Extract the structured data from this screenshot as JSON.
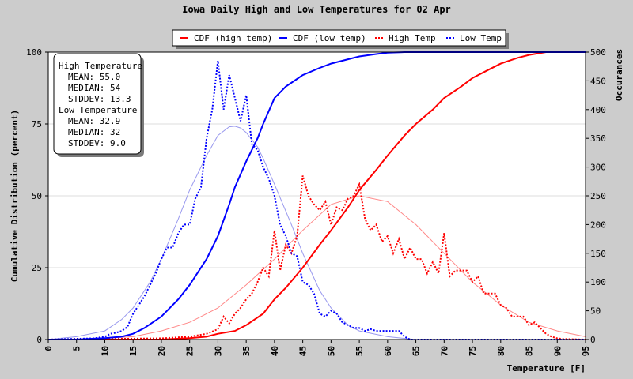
{
  "chart_data": {
    "type": "line",
    "title": "Iowa Daily High and Low Temperatures for 02 Apr",
    "xlabel": "Temperature [F]",
    "ylabel_left": "Cumulative Distribution (percent)",
    "ylabel_right": "Occurances",
    "xlim": [
      0,
      95
    ],
    "x_ticks": [
      0,
      5,
      10,
      15,
      20,
      25,
      30,
      35,
      40,
      45,
      50,
      55,
      60,
      65,
      70,
      75,
      80,
      85,
      90,
      95
    ],
    "ylim_left": [
      0,
      100
    ],
    "y_left_ticks": [
      0,
      25,
      50,
      75,
      100
    ],
    "ylim_right": [
      0,
      500
    ],
    "y_right_ticks": [
      0,
      50,
      100,
      150,
      200,
      250,
      300,
      350,
      400,
      450,
      500
    ],
    "legend": {
      "placement": "top",
      "items": [
        {
          "label": "CDF (high temp)",
          "color": "#ff0000",
          "style": "solid"
        },
        {
          "label": "CDF (low temp)",
          "color": "#0000ff",
          "style": "solid"
        },
        {
          "label": "High Temp",
          "color": "#ff0000",
          "style": "dotted"
        },
        {
          "label": "Low Temp",
          "color": "#0000ff",
          "style": "dotted"
        }
      ]
    },
    "stats_box": {
      "high_heading": "High Temperature",
      "high_mean": "MEAN: 55.0",
      "high_median": "MEDIAN: 54",
      "high_stddev": "STDDEV: 13.3",
      "low_heading": "Low Temperature",
      "low_mean": "MEAN: 32.9",
      "low_median": "MEDIAN: 32",
      "low_stddev": "STDDEV: 9.0"
    },
    "series": [
      {
        "name": "CDF (high temp)",
        "axis": "left",
        "color": "#ff0000",
        "style": "solid",
        "x": [
          0,
          10,
          20,
          25,
          28,
          30,
          33,
          35,
          38,
          40,
          42,
          45,
          48,
          50,
          53,
          55,
          58,
          60,
          63,
          65,
          68,
          70,
          73,
          75,
          78,
          80,
          83,
          85,
          88,
          90,
          95
        ],
        "y": [
          0,
          0,
          0,
          0.5,
          1,
          2,
          3,
          5,
          9,
          14,
          18,
          25,
          33,
          38,
          46,
          52,
          59,
          64,
          71,
          75,
          80,
          84,
          88,
          91,
          94,
          96,
          98,
          99,
          100,
          100,
          100
        ]
      },
      {
        "name": "CDF (low temp)",
        "axis": "left",
        "color": "#0000ff",
        "style": "solid",
        "x": [
          0,
          5,
          10,
          13,
          15,
          17,
          20,
          23,
          25,
          28,
          30,
          32,
          33,
          35,
          37,
          38,
          40,
          42,
          45,
          48,
          50,
          53,
          55,
          58,
          60,
          63,
          65,
          70,
          95
        ],
        "y": [
          0,
          0,
          0.5,
          1,
          2,
          4,
          8,
          14,
          19,
          28,
          36,
          47,
          53,
          62,
          70,
          75,
          84,
          88,
          92,
          94.5,
          96,
          97.5,
          98.5,
          99.3,
          99.8,
          100,
          100,
          100,
          100
        ]
      },
      {
        "name": "High Temp",
        "axis": "right",
        "color": "#ff0000",
        "style": "dotted",
        "x": [
          0,
          20,
          25,
          28,
          30,
          31,
          32,
          33,
          34,
          35,
          36,
          37,
          38,
          39,
          40,
          41,
          42,
          43,
          44,
          45,
          46,
          47,
          48,
          49,
          50,
          51,
          52,
          53,
          54,
          55,
          56,
          57,
          58,
          59,
          60,
          61,
          62,
          63,
          64,
          65,
          66,
          67,
          68,
          69,
          70,
          71,
          72,
          73,
          74,
          75,
          76,
          77,
          78,
          79,
          80,
          81,
          82,
          83,
          84,
          85,
          86,
          87,
          88,
          89,
          90,
          91,
          95
        ],
        "y": [
          0,
          2,
          5,
          10,
          18,
          40,
          28,
          45,
          55,
          70,
          80,
          100,
          125,
          110,
          190,
          120,
          165,
          150,
          180,
          285,
          250,
          235,
          225,
          240,
          200,
          230,
          225,
          245,
          250,
          270,
          210,
          190,
          200,
          170,
          180,
          150,
          175,
          140,
          160,
          140,
          140,
          115,
          135,
          115,
          185,
          110,
          120,
          120,
          120,
          100,
          110,
          80,
          80,
          80,
          60,
          55,
          40,
          40,
          40,
          25,
          30,
          20,
          10,
          5,
          2,
          1,
          0
        ]
      },
      {
        "name": "Low Temp",
        "axis": "right",
        "color": "#0000ff",
        "style": "dotted",
        "x": [
          0,
          8,
          10,
          11,
          12,
          13,
          14,
          15,
          16,
          17,
          18,
          19,
          20,
          21,
          22,
          23,
          24,
          25,
          26,
          27,
          28,
          29,
          30,
          31,
          32,
          33,
          34,
          35,
          36,
          37,
          38,
          39,
          40,
          41,
          42,
          43,
          44,
          45,
          46,
          47,
          48,
          49,
          50,
          51,
          52,
          53,
          54,
          55,
          56,
          57,
          58,
          60,
          62,
          63,
          64,
          95
        ],
        "y": [
          0,
          2,
          5,
          10,
          12,
          15,
          22,
          45,
          60,
          75,
          95,
          115,
          140,
          160,
          160,
          185,
          200,
          200,
          245,
          265,
          350,
          400,
          485,
          400,
          460,
          420,
          380,
          425,
          340,
          330,
          300,
          280,
          250,
          200,
          180,
          150,
          145,
          100,
          95,
          80,
          45,
          40,
          50,
          45,
          30,
          25,
          20,
          20,
          15,
          18,
          15,
          15,
          15,
          5,
          0,
          0
        ]
      },
      {
        "name": "Low Temp normal fit",
        "axis": "right",
        "color": "#9999ee",
        "style": "solid",
        "x": [
          0,
          5,
          10,
          13,
          15,
          18,
          20,
          23,
          25,
          28,
          30,
          32,
          33,
          34,
          35,
          37,
          38,
          40,
          43,
          45,
          48,
          50,
          53,
          55,
          60,
          65,
          95
        ],
        "y": [
          0,
          5,
          15,
          35,
          55,
          100,
          140,
          210,
          260,
          320,
          355,
          370,
          371,
          368,
          360,
          335,
          315,
          270,
          200,
          150,
          85,
          55,
          25,
          15,
          5,
          0,
          0
        ]
      },
      {
        "name": "High Temp normal fit",
        "axis": "right",
        "color": "#ff8888",
        "style": "solid",
        "x": [
          0,
          10,
          15,
          20,
          25,
          30,
          35,
          40,
          45,
          50,
          55,
          60,
          65,
          70,
          75,
          80,
          85,
          90,
          95
        ],
        "y": [
          0,
          2,
          5,
          15,
          30,
          55,
          95,
          140,
          190,
          235,
          250,
          240,
          200,
          150,
          100,
          60,
          30,
          15,
          5
        ]
      }
    ]
  }
}
